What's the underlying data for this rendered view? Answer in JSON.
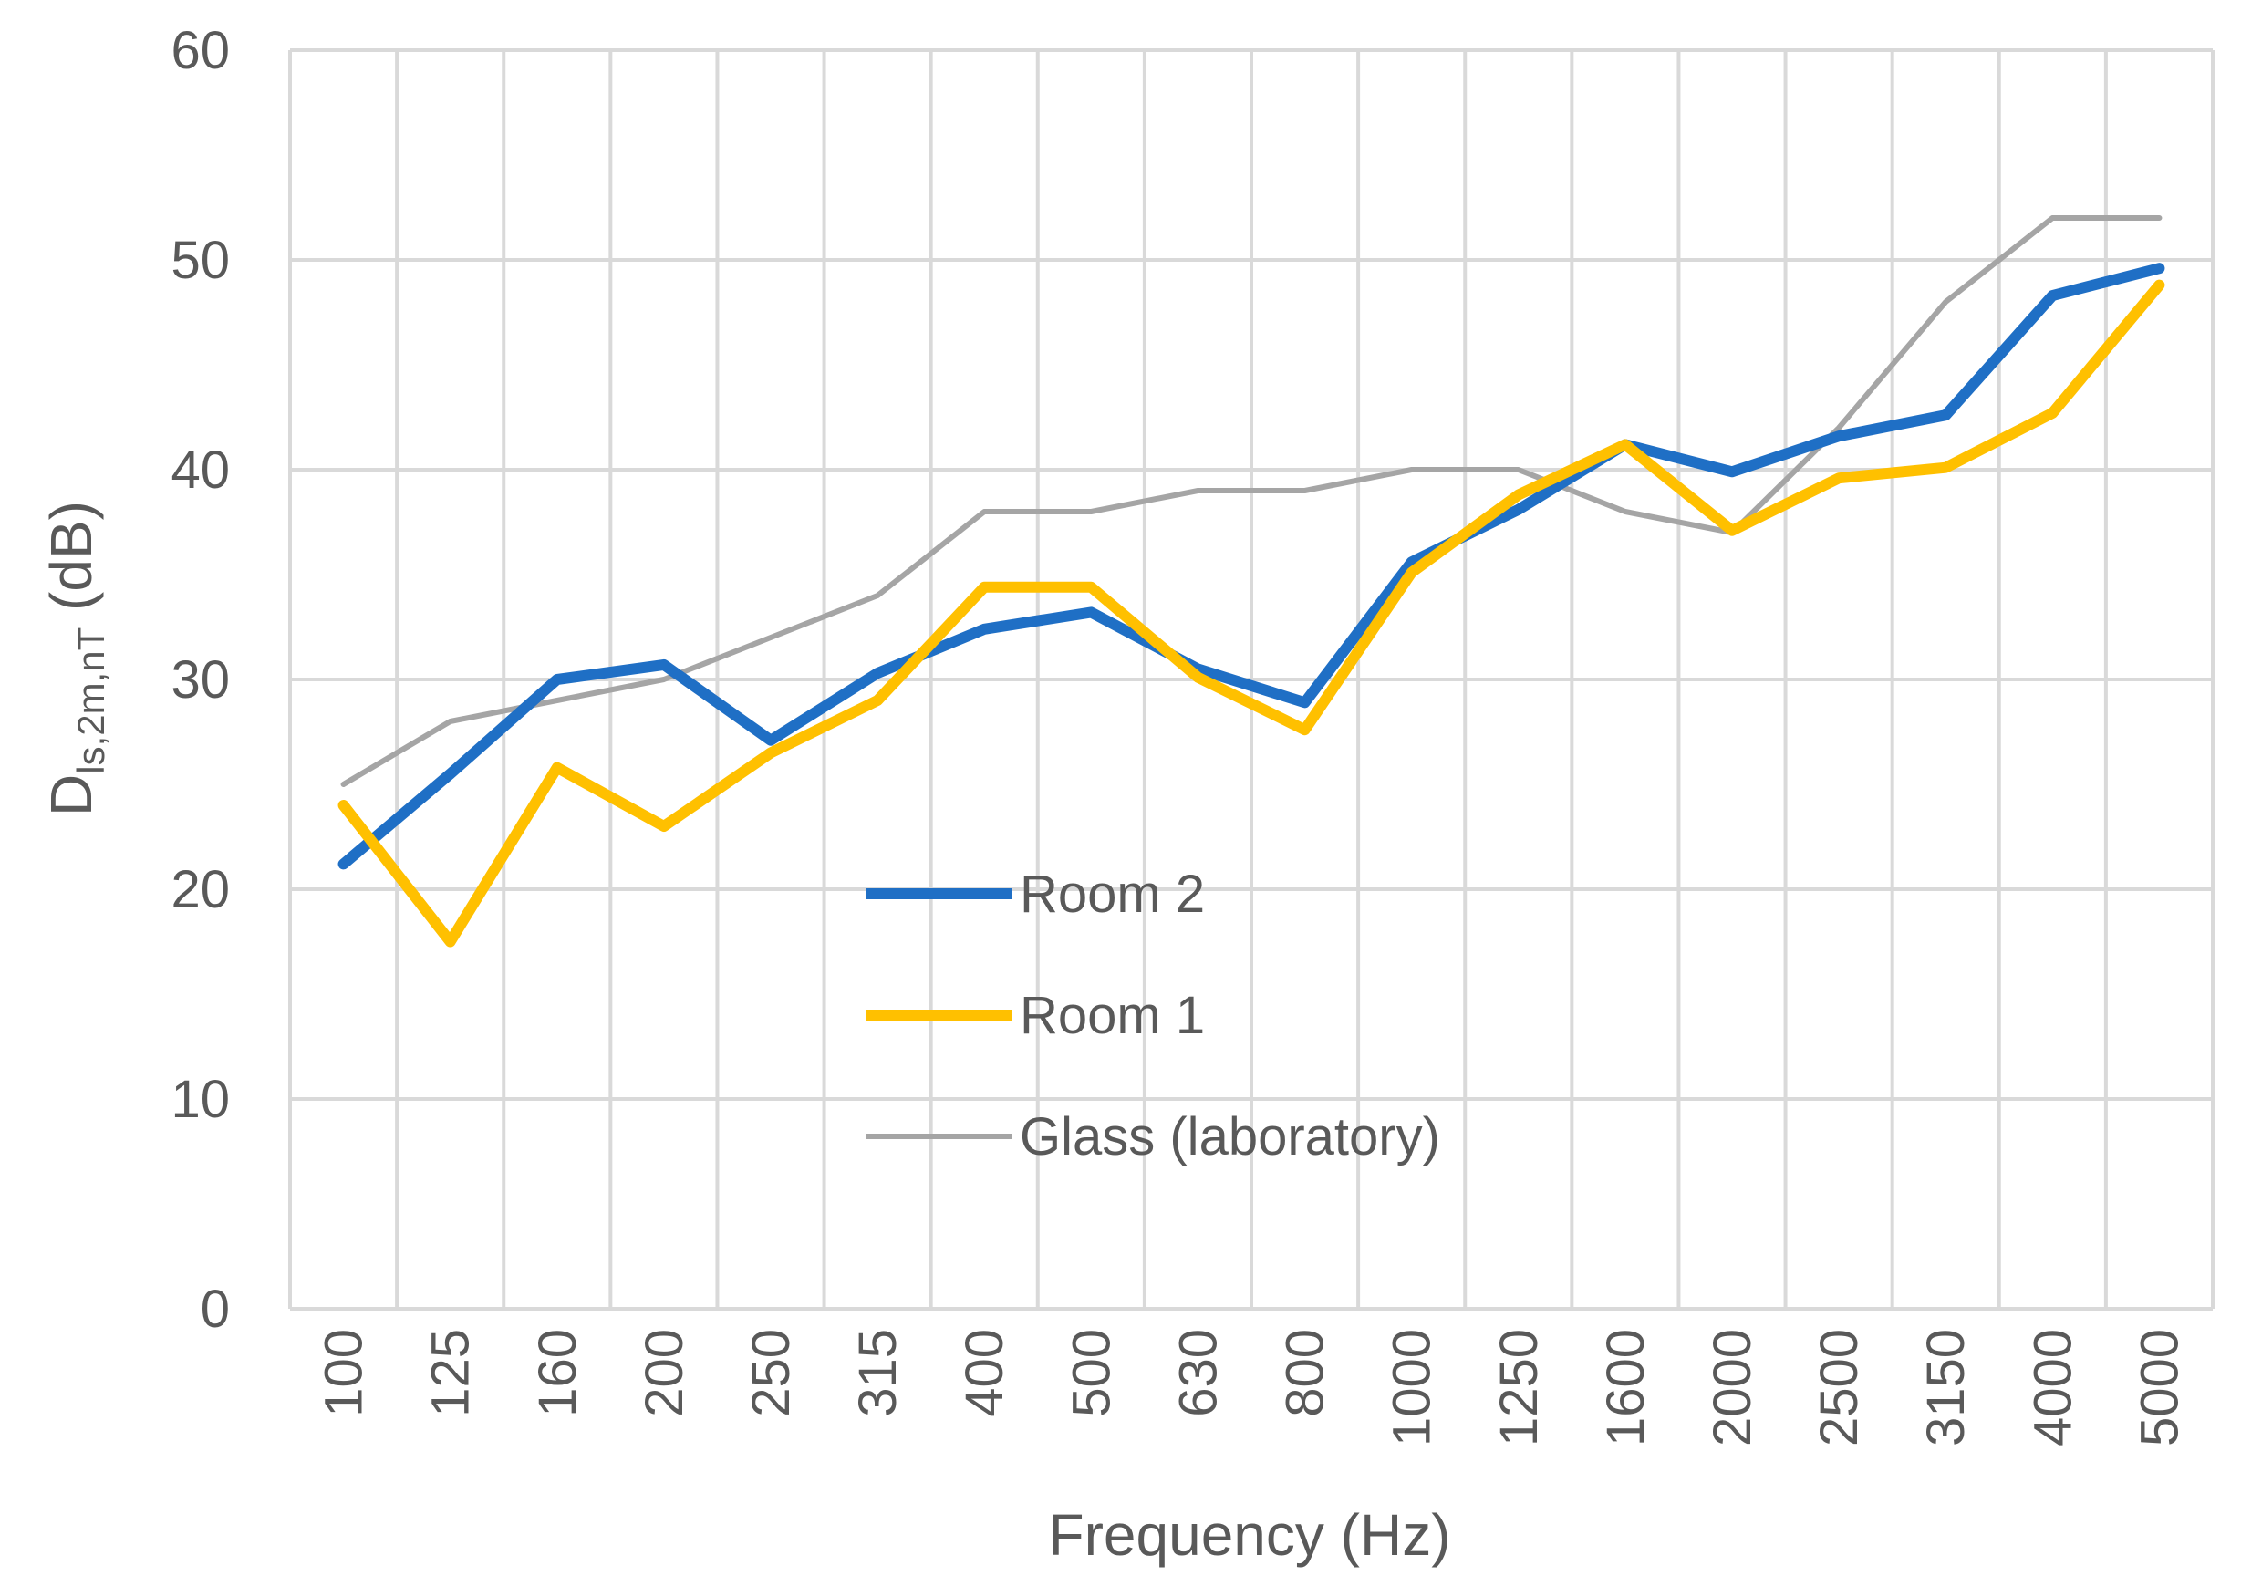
{
  "chart_data": {
    "type": "line",
    "title": "",
    "xlabel": "Frequency (Hz)",
    "ylabel_main": "D",
    "ylabel_subscript": "ls,2m,nT",
    "ylabel_suffix": " (dB)",
    "ylim": [
      0,
      60
    ],
    "y_ticks": [
      "0",
      "10",
      "20",
      "30",
      "40",
      "50",
      "60"
    ],
    "grid": true,
    "legend_position": "center",
    "categories": [
      "100",
      "125",
      "160",
      "200",
      "250",
      "315",
      "400",
      "500",
      "630",
      "800",
      "1000",
      "1250",
      "1600",
      "2000",
      "2500",
      "3150",
      "4000",
      "5000"
    ],
    "series": [
      {
        "name": "Room 2",
        "color": "#1f6fc5",
        "values": [
          21.2,
          25.5,
          30.0,
          30.7,
          27.1,
          30.3,
          32.4,
          33.2,
          30.5,
          28.9,
          35.6,
          38.1,
          41.2,
          39.9,
          41.6,
          42.6,
          48.3,
          49.6
        ]
      },
      {
        "name": "Room 1",
        "color": "#ffc000",
        "values": [
          24.0,
          17.5,
          25.8,
          23.0,
          26.5,
          29.0,
          34.4,
          34.4,
          30.1,
          27.6,
          35.1,
          38.8,
          41.2,
          37.1,
          39.6,
          40.1,
          42.7,
          48.8
        ]
      },
      {
        "name": "Glass (laboratory)",
        "color": "#a5a5a5",
        "values": [
          25,
          28,
          29,
          30,
          32,
          34,
          38,
          38,
          39,
          39,
          40,
          40,
          38,
          37,
          42,
          48,
          52,
          52
        ]
      }
    ]
  }
}
